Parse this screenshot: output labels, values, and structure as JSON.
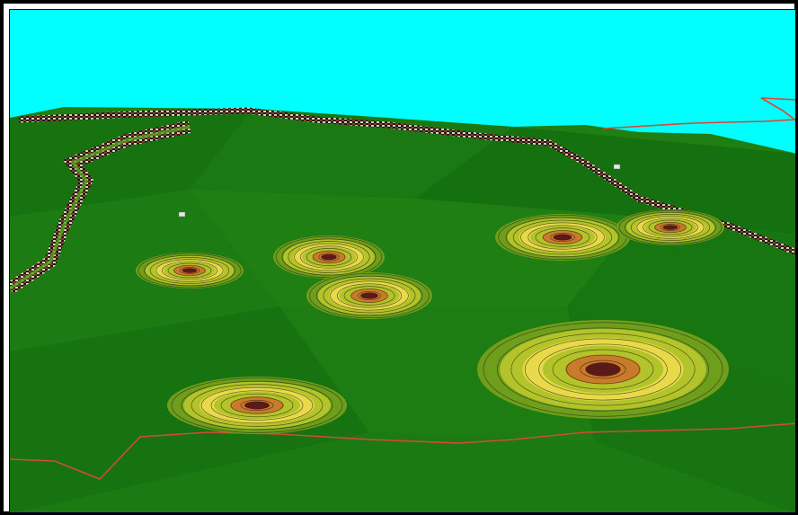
{
  "map": {
    "kind": "3d-terrain-contour-view",
    "colors": {
      "sky": "#00FFFF",
      "terrain_dark": "#0E6A0E",
      "terrain": "#1F7F12",
      "contour_low": "#6E9E1C",
      "contour_mid": "#B3C42A",
      "contour_high": "#E7D94A",
      "contour_peak": "#C97A2A",
      "contour_core": "#5A1A1A",
      "boundary_line": "#D24A3A"
    },
    "peaks": [
      {
        "id": "peak-1"
      },
      {
        "id": "peak-2"
      },
      {
        "id": "peak-3"
      },
      {
        "id": "peak-4"
      },
      {
        "id": "peak-5"
      },
      {
        "id": "peak-6"
      },
      {
        "id": "peak-7"
      }
    ],
    "markers": [
      {
        "id": "marker-1"
      },
      {
        "id": "marker-2"
      }
    ]
  }
}
